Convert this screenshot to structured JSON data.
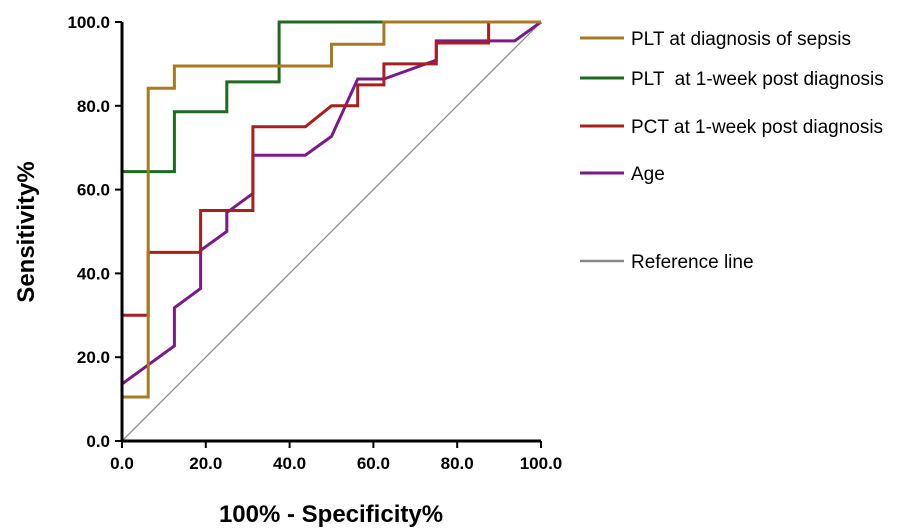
{
  "chart_data": {
    "type": "line",
    "title": "",
    "xlabel": "100% - Specificity%",
    "ylabel": "Sensitivity%",
    "xlim": [
      0,
      100
    ],
    "ylim": [
      0,
      100
    ],
    "x_ticks": [
      "0.0",
      "20.0",
      "40.0",
      "60.0",
      "80.0",
      "100.0"
    ],
    "y_ticks": [
      "0.0",
      "20.0",
      "40.0",
      "60.0",
      "80.0",
      "100.0"
    ],
    "grid": false,
    "legend_position": "right",
    "series": [
      {
        "name": "PLT at diagnosis of sepsis",
        "color": "#a87a22",
        "points": [
          [
            0,
            10.5
          ],
          [
            6.25,
            10.5
          ],
          [
            6.25,
            84.2
          ],
          [
            12.5,
            84.2
          ],
          [
            12.5,
            89.5
          ],
          [
            50,
            89.5
          ],
          [
            50,
            94.7
          ],
          [
            62.5,
            94.7
          ],
          [
            62.5,
            100
          ],
          [
            100,
            100
          ]
        ]
      },
      {
        "name": "PLT  at 1-week post diagnosis",
        "color": "#1e6b1e",
        "points": [
          [
            0,
            28.6
          ],
          [
            0,
            64.3
          ],
          [
            12.5,
            64.3
          ],
          [
            12.5,
            78.6
          ],
          [
            25,
            78.6
          ],
          [
            25,
            85.7
          ],
          [
            37.5,
            85.7
          ],
          [
            37.5,
            100
          ],
          [
            100,
            100
          ]
        ]
      },
      {
        "name": "PCT at 1-week post diagnosis",
        "color": "#a81f1f",
        "points": [
          [
            0,
            0
          ],
          [
            0,
            30
          ],
          [
            6.25,
            30
          ],
          [
            6.25,
            45
          ],
          [
            18.75,
            45
          ],
          [
            18.75,
            55
          ],
          [
            31.25,
            55
          ],
          [
            31.25,
            75
          ],
          [
            43.75,
            75
          ],
          [
            50,
            80
          ],
          [
            56.25,
            80
          ],
          [
            56.25,
            85
          ],
          [
            62.5,
            85
          ],
          [
            62.5,
            90
          ],
          [
            75,
            90
          ],
          [
            75,
            95
          ],
          [
            87.5,
            95
          ],
          [
            87.5,
            100
          ],
          [
            100,
            100
          ]
        ]
      },
      {
        "name": "Age",
        "color": "#7a1a88",
        "points": [
          [
            0,
            13.6
          ],
          [
            12.5,
            22.7
          ],
          [
            12.5,
            31.8
          ],
          [
            18.75,
            36.4
          ],
          [
            18.75,
            45.5
          ],
          [
            25,
            50
          ],
          [
            25,
            54.5
          ],
          [
            31.25,
            59.1
          ],
          [
            31.25,
            68.2
          ],
          [
            43.75,
            68.2
          ],
          [
            50,
            72.7
          ],
          [
            56.25,
            86.4
          ],
          [
            62.5,
            86.4
          ],
          [
            75,
            90.9
          ],
          [
            75,
            95.5
          ],
          [
            93.75,
            95.5
          ],
          [
            100,
            100
          ]
        ]
      },
      {
        "name": "Reference line",
        "color": "#888888",
        "points": [
          [
            0,
            0
          ],
          [
            100,
            100
          ]
        ]
      }
    ]
  }
}
